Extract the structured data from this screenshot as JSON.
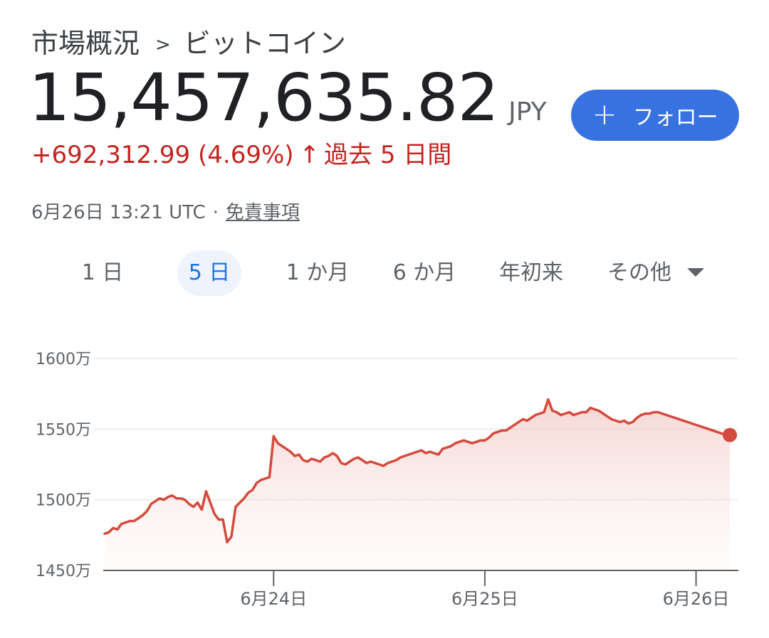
{
  "header": {
    "breadcrumb_root": "市場概況",
    "breadcrumb_sep": ">",
    "breadcrumb_current": "ビットコイン",
    "price": "15,457,635.82",
    "currency": "JPY",
    "change": "+692,312.99",
    "change_pct": "(4.69%)",
    "change_arrow": "↑",
    "change_period": "過去 5 日間",
    "timestamp": "6月26日 13:21 UTC",
    "meta_sep": "·",
    "disclaimer": "免責事項"
  },
  "follow_button": {
    "icon": "plus-icon",
    "plus": "+",
    "label": "フォロー"
  },
  "tabs": [
    {
      "label": "1 日"
    },
    {
      "label": "5 日",
      "active": true
    },
    {
      "label": "1 か月"
    },
    {
      "label": "6 か月"
    },
    {
      "label": "年初来"
    },
    {
      "label": "その他",
      "dropdown": true
    }
  ],
  "colors": {
    "line": "#d44a3c",
    "accent": "#3871e0",
    "negative": "#c5221f"
  },
  "chart_data": {
    "type": "area",
    "ylabels": [
      "1600万",
      "1550万",
      "1500万",
      "1450万"
    ],
    "yticks": [
      16000000,
      15500000,
      15000000,
      14500000
    ],
    "ylim": [
      14500000,
      16000000
    ],
    "xlabels": [
      "6月24日",
      "6月25日",
      "6月26日"
    ],
    "xtick_index": [
      40,
      90,
      140
    ],
    "grid": true,
    "series": [
      {
        "values": [
          14760000,
          14770000,
          14800000,
          14790000,
          14830000,
          14840000,
          14850000,
          14850000,
          14870000,
          14890000,
          14920000,
          14970000,
          14990000,
          15010000,
          15000000,
          15020000,
          15030000,
          15010000,
          15010000,
          15000000,
          14970000,
          14950000,
          14980000,
          14930000,
          15060000,
          14980000,
          14900000,
          14860000,
          14860000,
          14700000,
          14740000,
          14950000,
          14980000,
          15010000,
          15050000,
          15070000,
          15120000,
          15140000,
          15150000,
          15160000,
          15450000,
          15400000,
          15380000,
          15360000,
          15340000,
          15310000,
          15320000,
          15280000,
          15270000,
          15290000,
          15280000,
          15270000,
          15300000,
          15310000,
          15330000,
          15310000,
          15260000,
          15250000,
          15270000,
          15290000,
          15300000,
          15280000,
          15260000,
          15270000,
          15260000,
          15250000,
          15240000,
          15260000,
          15270000,
          15280000,
          15300000,
          15310000,
          15320000,
          15330000,
          15340000,
          15350000,
          15330000,
          15340000,
          15330000,
          15320000,
          15360000,
          15370000,
          15380000,
          15400000,
          15410000,
          15420000,
          15410000,
          15400000,
          15410000,
          15420000,
          15420000,
          15440000,
          15470000,
          15480000,
          15490000,
          15490000,
          15510000,
          15530000,
          15550000,
          15570000,
          15560000,
          15580000,
          15600000,
          15610000,
          15620000,
          15710000,
          15630000,
          15620000,
          15600000,
          15610000,
          15620000,
          15600000,
          15610000,
          15620000,
          15620000,
          15650000,
          15640000,
          15630000,
          15610000,
          15590000,
          15570000,
          15560000,
          15550000,
          15560000,
          15540000,
          15550000,
          15580000,
          15600000,
          15610000,
          15610000,
          15620000,
          15620000,
          15610000,
          15600000,
          15590000,
          15580000,
          15570000,
          15560000,
          15550000,
          15540000,
          15530000,
          15520000,
          15510000,
          15500000,
          15490000,
          15480000,
          15470000,
          15460000,
          15458000
        ]
      }
    ]
  }
}
